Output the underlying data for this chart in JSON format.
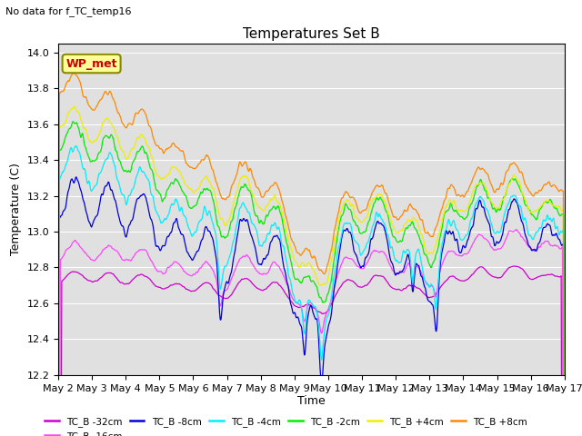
{
  "title": "Temperatures Set B",
  "subtitle": "No data for f_TC_temp16",
  "xlabel": "Time",
  "ylabel": "Temperature (C)",
  "ylim": [
    12.2,
    14.05
  ],
  "yticks": [
    12.2,
    12.4,
    12.6,
    12.8,
    13.0,
    13.2,
    13.4,
    13.6,
    13.8,
    14.0
  ],
  "xtick_labels": [
    "May 2",
    "May 3",
    "May 4",
    "May 5",
    "May 6",
    "May 7",
    "May 8",
    "May 9",
    "May 10",
    "May 11",
    "May 12",
    "May 13",
    "May 14",
    "May 15",
    "May 16",
    "May 17"
  ],
  "series": [
    {
      "label": "TC_B -32cm",
      "color": "#cc00cc"
    },
    {
      "label": "TC_B -16cm",
      "color": "#ff44ff"
    },
    {
      "label": "TC_B -8cm",
      "color": "#0000dd"
    },
    {
      "label": "TC_B -4cm",
      "color": "#00eeff"
    },
    {
      "label": "TC_B -2cm",
      "color": "#00ee00"
    },
    {
      "label": "TC_B +4cm",
      "color": "#eeee00"
    },
    {
      "label": "TC_B +8cm",
      "color": "#ff8800"
    }
  ],
  "wp_met_label": "WP_met",
  "wp_met_color": "#cc0000",
  "wp_met_bg": "#ffff99",
  "background_color": "#e0e0e0",
  "grid_color": "#ffffff",
  "n_points": 2880,
  "days": 15
}
